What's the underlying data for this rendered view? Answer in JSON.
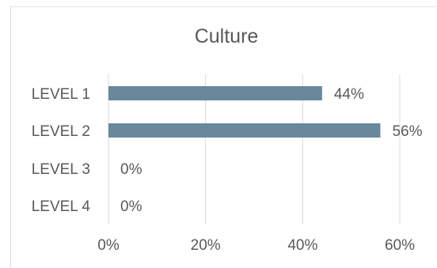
{
  "chart_data": {
    "type": "bar",
    "orientation": "horizontal",
    "title": "Culture",
    "categories": [
      "LEVEL 1",
      "LEVEL 2",
      "LEVEL 3",
      "LEVEL 4"
    ],
    "values": [
      44,
      56,
      0,
      0
    ],
    "data_labels": [
      "44%",
      "56%",
      "0%",
      "0%"
    ],
    "xlim": [
      0,
      60
    ],
    "x_ticks": [
      0,
      20,
      40,
      60
    ],
    "x_tick_labels": [
      "0%",
      "20%",
      "40%",
      "60%"
    ],
    "grid": true,
    "bar_color": "#69889c",
    "legend": "none"
  }
}
